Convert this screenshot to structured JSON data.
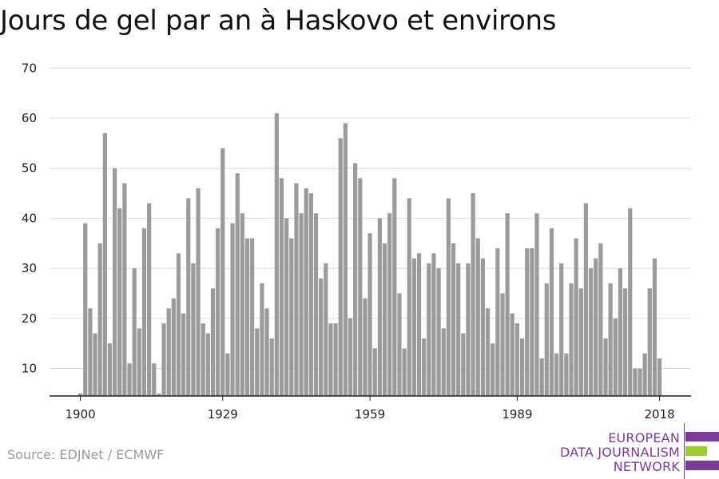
{
  "chart_data": {
    "type": "bar",
    "title": "Jours de gel par an à Haskovo et environs",
    "x_start": 1900,
    "x_end": 2020,
    "values": [
      5,
      39,
      22,
      17,
      35,
      57,
      15,
      50,
      42,
      47,
      11,
      30,
      18,
      38,
      43,
      11,
      5,
      19,
      22,
      24,
      33,
      21,
      44,
      31,
      46,
      19,
      17,
      26,
      38,
      54,
      13,
      39,
      49,
      41,
      36,
      36,
      18,
      27,
      22,
      16,
      61,
      48,
      40,
      36,
      47,
      41,
      46,
      45,
      41,
      28,
      31,
      19,
      19,
      56,
      59,
      20,
      51,
      48,
      24,
      37,
      14,
      40,
      35,
      41,
      48,
      25,
      14,
      44,
      32,
      33,
      16,
      31,
      33,
      30,
      18,
      44,
      35,
      31,
      17,
      31,
      45,
      36,
      32,
      22,
      15,
      34,
      25,
      41,
      21,
      19,
      16,
      34,
      34,
      41,
      12,
      27,
      38,
      13,
      31,
      13,
      27,
      36,
      26,
      43,
      30,
      32,
      35,
      16,
      27,
      20,
      30,
      26,
      42,
      10,
      10,
      13,
      26,
      32,
      12
    ],
    "xticks": [
      1900,
      1929,
      1959,
      1989,
      2018
    ],
    "yticks": [
      10,
      20,
      30,
      40,
      50,
      60,
      70
    ],
    "ylim": [
      4.5,
      70
    ],
    "xlabel": "",
    "ylabel": "",
    "grid": true,
    "colors": {
      "bar": "#9b9b9b",
      "grid": "#dddddd",
      "axis": "#222222"
    }
  },
  "source": "Source: EDJNet / ECMWF",
  "logo": {
    "line1": "EUROPEAN",
    "line2": "DATA JOURNALISM",
    "line3": "NETWORK",
    "colors": {
      "purple": "#7b3b9b",
      "green": "#9ccc2e"
    }
  }
}
